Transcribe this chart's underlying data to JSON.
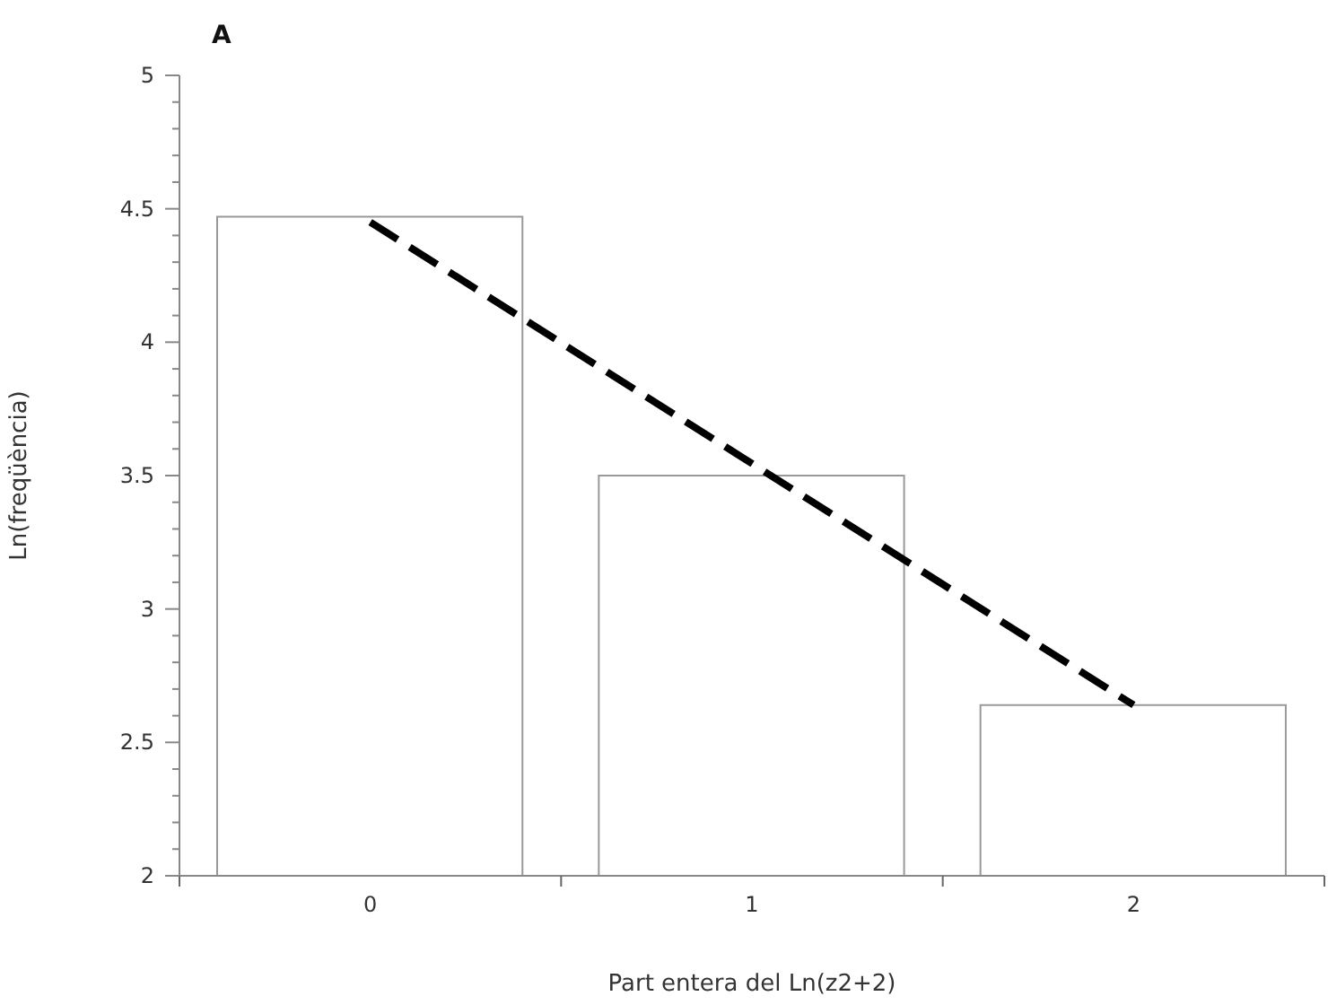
{
  "chart_data": {
    "type": "bar",
    "title": "A",
    "xlabel": "Part entera del Ln(z2+2)",
    "ylabel": "Ln(freqüència)",
    "x": [
      0,
      1,
      2
    ],
    "series": [
      {
        "color": "#ffffff",
        "values": [
          4.47,
          3.5,
          2.64
        ]
      },
      {
        "type": "line",
        "color": "#000000",
        "line_style": "dashed",
        "marker": "none",
        "x": [
          0,
          2
        ],
        "values": [
          4.45,
          2.64
        ]
      }
    ],
    "xlim": [
      -0.5,
      2.5
    ],
    "xticks": [
      {
        "value": -0.5,
        "label": null
      },
      0,
      {
        "value": 0.5,
        "label": null
      },
      1,
      {
        "value": 1.5,
        "label": null
      },
      2,
      {
        "value": 2.5,
        "label": null
      }
    ],
    "ylim": [
      2,
      5
    ],
    "yticks": [
      2,
      {
        "value": 2.1,
        "label": null
      },
      {
        "value": 2.2,
        "label": null
      },
      {
        "value": 2.3,
        "label": null
      },
      {
        "value": 2.4,
        "label": null
      },
      2.5,
      {
        "value": 2.6,
        "label": null
      },
      {
        "value": 2.7,
        "label": null
      },
      {
        "value": 2.8,
        "label": null
      },
      {
        "value": 2.9,
        "label": null
      },
      3,
      {
        "value": 3.1,
        "label": null
      },
      {
        "value": 3.2,
        "label": null
      },
      {
        "value": 3.3,
        "label": null
      },
      {
        "value": 3.4,
        "label": null
      },
      3.5,
      {
        "value": 3.6,
        "label": null
      },
      {
        "value": 3.7,
        "label": null
      },
      {
        "value": 3.8,
        "label": null
      },
      {
        "value": 3.9,
        "label": null
      },
      4,
      {
        "value": 4.1,
        "label": null
      },
      {
        "value": 4.2,
        "label": null
      },
      {
        "value": 4.3,
        "label": null
      },
      {
        "value": 4.4,
        "label": null
      },
      4.5,
      {
        "value": 4.6,
        "label": null
      },
      {
        "value": 4.7,
        "label": null
      },
      {
        "value": 4.8,
        "label": null
      },
      {
        "value": 4.9,
        "label": null
      },
      5
    ],
    "grid": false,
    "legend": false
  }
}
